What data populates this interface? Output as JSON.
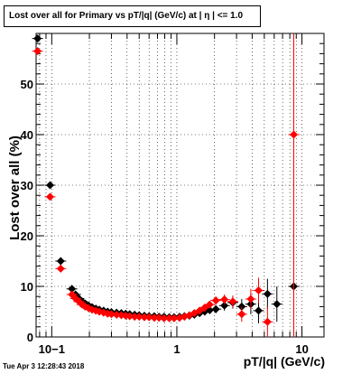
{
  "title": "Lost over all for Primary vs pT/|q| (GeV/c) at | η | <= 1.0",
  "timestamp": "Tue Apr  3 12:28:43 2018",
  "chart_data": {
    "type": "scatter",
    "title": "Lost over all for Primary vs pT/|q| (GeV/c) at | η | <= 1.0",
    "xlabel": "pT/|q| (GeV/c)",
    "ylabel": "Lost over all (%)",
    "xscale": "log",
    "xlim": [
      0.075,
      15
    ],
    "ylim": [
      0,
      60
    ],
    "grid": true,
    "x_ticks": [
      {
        "value": 0.1,
        "label": "10−1"
      },
      {
        "value": 1,
        "label": "1"
      },
      {
        "value": 10,
        "label": "10"
      }
    ],
    "y_ticks": [
      0,
      10,
      20,
      30,
      40,
      50
    ],
    "colors": {
      "black_series": "#000000",
      "red_series": "#ff0000",
      "grid": "#000000"
    },
    "series": [
      {
        "color": "#000000",
        "points": [
          {
            "x": 0.077,
            "y": 59.0,
            "yerr": 0.5
          },
          {
            "x": 0.097,
            "y": 30.0,
            "yerr": 0.5
          },
          {
            "x": 0.118,
            "y": 15.0,
            "yerr": 0.5
          },
          {
            "x": 0.145,
            "y": 9.5,
            "yerr": 0.3
          },
          {
            "x": 0.155,
            "y": 8.4
          },
          {
            "x": 0.165,
            "y": 7.6
          },
          {
            "x": 0.175,
            "y": 7.0
          },
          {
            "x": 0.185,
            "y": 6.6
          },
          {
            "x": 0.197,
            "y": 6.2
          },
          {
            "x": 0.21,
            "y": 5.9
          },
          {
            "x": 0.225,
            "y": 5.6
          },
          {
            "x": 0.24,
            "y": 5.4
          },
          {
            "x": 0.26,
            "y": 5.2
          },
          {
            "x": 0.28,
            "y": 5.0
          },
          {
            "x": 0.3,
            "y": 4.9
          },
          {
            "x": 0.33,
            "y": 4.8
          },
          {
            "x": 0.36,
            "y": 4.7
          },
          {
            "x": 0.39,
            "y": 4.6
          },
          {
            "x": 0.42,
            "y": 4.5
          },
          {
            "x": 0.46,
            "y": 4.4
          },
          {
            "x": 0.5,
            "y": 4.3
          },
          {
            "x": 0.55,
            "y": 4.2
          },
          {
            "x": 0.6,
            "y": 4.1
          },
          {
            "x": 0.66,
            "y": 4.1
          },
          {
            "x": 0.72,
            "y": 4.0
          },
          {
            "x": 0.79,
            "y": 4.0
          },
          {
            "x": 0.87,
            "y": 3.9
          },
          {
            "x": 0.95,
            "y": 3.9
          },
          {
            "x": 1.05,
            "y": 4.0
          },
          {
            "x": 1.15,
            "y": 4.1
          },
          {
            "x": 1.26,
            "y": 4.2
          },
          {
            "x": 1.38,
            "y": 4.4
          },
          {
            "x": 1.52,
            "y": 4.7
          },
          {
            "x": 1.67,
            "y": 5.0
          },
          {
            "x": 1.83,
            "y": 5.3
          },
          {
            "x": 2.05,
            "y": 5.5,
            "yerr": 0.8
          },
          {
            "x": 2.4,
            "y": 6.2,
            "yerr": 1.0
          },
          {
            "x": 2.8,
            "y": 6.8,
            "yerr": 1.2
          },
          {
            "x": 3.3,
            "y": 6.0,
            "yerr": 1.5
          },
          {
            "x": 3.9,
            "y": 6.5,
            "yerr": 2.0
          },
          {
            "x": 4.5,
            "y": 5.2,
            "yerr": 2.5
          },
          {
            "x": 5.3,
            "y": 8.5,
            "yerr": 3.0
          },
          {
            "x": 6.3,
            "y": 6.5,
            "yerr": 3.5
          },
          {
            "x": 8.6,
            "y": 10.0,
            "yerr": 10.0
          }
        ]
      },
      {
        "color": "#ff0000",
        "points": [
          {
            "x": 0.077,
            "y": 56.5,
            "yerr": 0.5
          },
          {
            "x": 0.097,
            "y": 27.7,
            "yerr": 0.5
          },
          {
            "x": 0.118,
            "y": 13.5,
            "yerr": 0.5
          },
          {
            "x": 0.145,
            "y": 8.4,
            "yerr": 0.3
          },
          {
            "x": 0.155,
            "y": 7.6
          },
          {
            "x": 0.165,
            "y": 7.0
          },
          {
            "x": 0.175,
            "y": 6.4
          },
          {
            "x": 0.185,
            "y": 6.0
          },
          {
            "x": 0.197,
            "y": 5.7
          },
          {
            "x": 0.21,
            "y": 5.4
          },
          {
            "x": 0.225,
            "y": 5.2
          },
          {
            "x": 0.24,
            "y": 5.0
          },
          {
            "x": 0.26,
            "y": 4.8
          },
          {
            "x": 0.28,
            "y": 4.6
          },
          {
            "x": 0.3,
            "y": 4.5
          },
          {
            "x": 0.33,
            "y": 4.4
          },
          {
            "x": 0.36,
            "y": 4.3
          },
          {
            "x": 0.39,
            "y": 4.2
          },
          {
            "x": 0.42,
            "y": 4.1
          },
          {
            "x": 0.46,
            "y": 4.0
          },
          {
            "x": 0.5,
            "y": 4.0
          },
          {
            "x": 0.55,
            "y": 3.9
          },
          {
            "x": 0.6,
            "y": 3.9
          },
          {
            "x": 0.66,
            "y": 3.8
          },
          {
            "x": 0.72,
            "y": 3.8
          },
          {
            "x": 0.79,
            "y": 3.7
          },
          {
            "x": 0.87,
            "y": 3.7
          },
          {
            "x": 0.95,
            "y": 3.7
          },
          {
            "x": 1.05,
            "y": 3.8
          },
          {
            "x": 1.15,
            "y": 4.0
          },
          {
            "x": 1.26,
            "y": 4.3
          },
          {
            "x": 1.38,
            "y": 4.7
          },
          {
            "x": 1.52,
            "y": 5.2
          },
          {
            "x": 1.67,
            "y": 5.8
          },
          {
            "x": 1.83,
            "y": 6.4
          },
          {
            "x": 2.05,
            "y": 7.2,
            "yerr": 0.8
          },
          {
            "x": 2.4,
            "y": 7.4,
            "yerr": 1.0
          },
          {
            "x": 2.8,
            "y": 7.0,
            "yerr": 1.2
          },
          {
            "x": 3.3,
            "y": 4.5,
            "yerr": 1.5
          },
          {
            "x": 3.9,
            "y": 7.5,
            "yerr": 2.0
          },
          {
            "x": 4.5,
            "y": 9.2,
            "yerr": 2.5
          },
          {
            "x": 5.3,
            "y": 3.0,
            "yerr": 3.0
          },
          {
            "x": 8.6,
            "y": 40.0,
            "yerr": 40.0
          }
        ]
      }
    ]
  }
}
